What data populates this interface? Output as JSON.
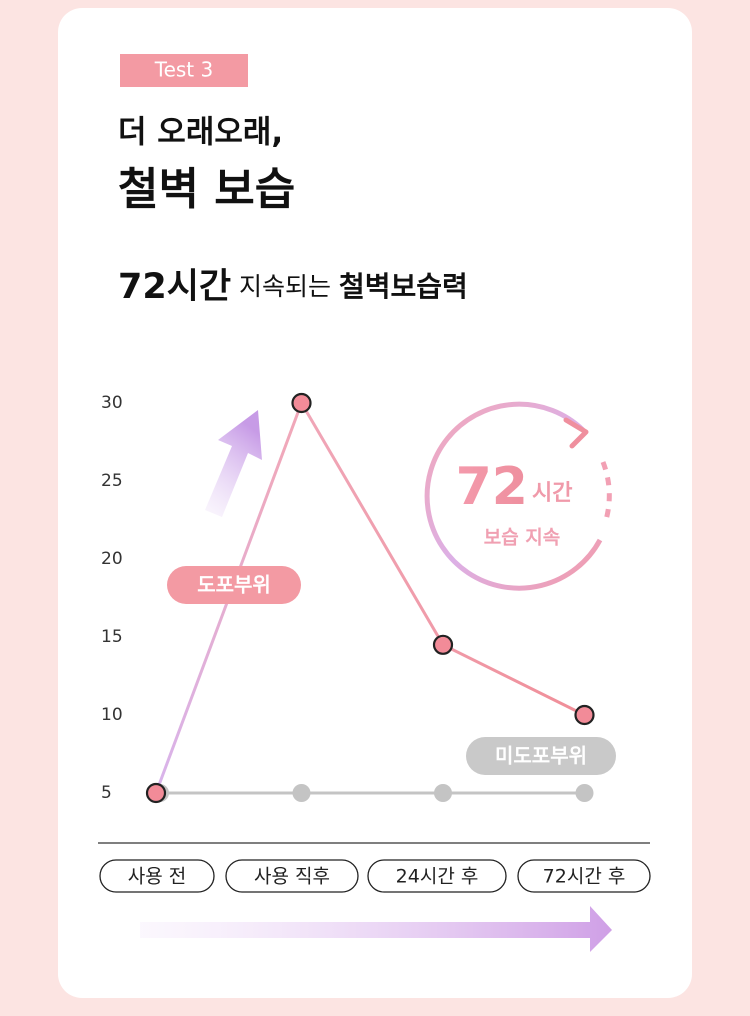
{
  "chart_data": {
    "type": "line",
    "tag": "Test 3",
    "title": [
      "더 오래오래,",
      "철벽 보습"
    ],
    "subtitle": [
      "72시간",
      " 지속되는 ",
      "철벽보습력"
    ],
    "badge": {
      "number": "72",
      "unit": "시간",
      "caption": "보습 지속"
    },
    "categories": [
      "사용 전",
      "사용 직후",
      "24시간 후",
      "72시간 후"
    ],
    "series": [
      {
        "name": "도포부위",
        "color": "#f2a0aa",
        "values": [
          5,
          30,
          14.5,
          10
        ]
      },
      {
        "name": "미도포부위",
        "color": "#c4c4c4",
        "values": [
          5,
          5,
          5,
          5
        ]
      }
    ],
    "ylim": [
      5,
      30
    ],
    "yticks": [
      5,
      10,
      15,
      20,
      25,
      30
    ],
    "grid": false
  }
}
